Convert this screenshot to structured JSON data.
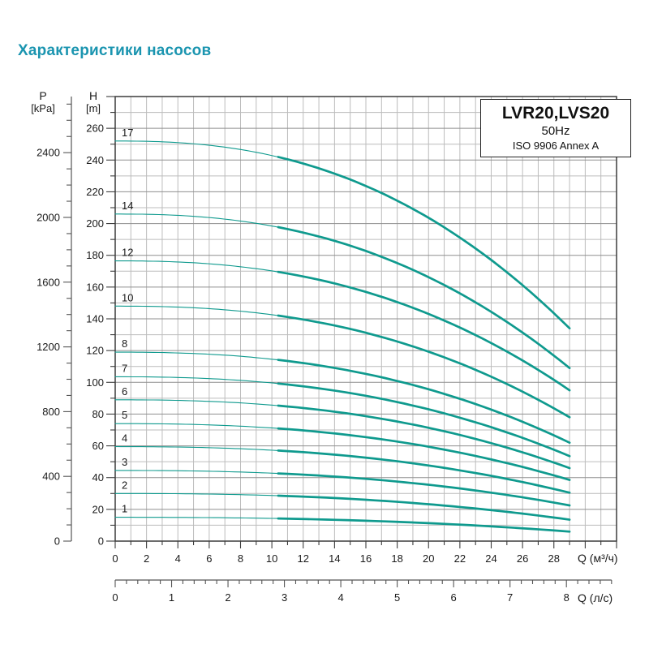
{
  "page": {
    "title": "Характеристики насосов",
    "title_color": "#1b95b0",
    "background": "#ffffff"
  },
  "chart_data": {
    "type": "line",
    "legend": {
      "model": "LVR20,LVS20",
      "frequency": "50Hz",
      "standard": "ISO 9906 Annex A"
    },
    "axes": {
      "pressure": {
        "label": "P",
        "unit": "[kPa]",
        "ticks": [
          0,
          400,
          800,
          1200,
          1600,
          2000,
          2400
        ],
        "minor_step": 100,
        "minor_max": 2700,
        "kpa_per_m": 9.81
      },
      "head": {
        "label": "H",
        "unit": "[m]",
        "ticks": [
          0,
          20,
          40,
          60,
          80,
          100,
          120,
          140,
          160,
          180,
          200,
          220,
          240,
          260
        ],
        "minor_step": 10,
        "range": [
          0,
          280
        ]
      },
      "flow_m3h": {
        "label": "Q (м³/ч)",
        "tick_labels": [
          0,
          2,
          4,
          6,
          8,
          10,
          12,
          14,
          16,
          18,
          20,
          22,
          24,
          26,
          28
        ],
        "minor_step": 1,
        "range": [
          0,
          32
        ]
      },
      "flow_ls": {
        "label": "Q (л/с)",
        "tick_labels": [
          0,
          1,
          2,
          3,
          4,
          5,
          6,
          7,
          8
        ],
        "minor_step": 0.2,
        "range": [
          0,
          8.8
        ],
        "m3h_per_ls": 3.6
      }
    },
    "curve": {
      "color": "#0f9a8e",
      "q_start": 0,
      "q_end": 29,
      "bold_from_q": 10.4,
      "shape_exponent": 2.4
    },
    "series": [
      {
        "label": "1",
        "h0": 15,
        "h_end": 6
      },
      {
        "label": "2",
        "h0": 30,
        "h_end": 13.5
      },
      {
        "label": "3",
        "h0": 44.5,
        "h_end": 22.5
      },
      {
        "label": "4",
        "h0": 59.5,
        "h_end": 30.5
      },
      {
        "label": "5",
        "h0": 74,
        "h_end": 38.5
      },
      {
        "label": "6",
        "h0": 89,
        "h_end": 46
      },
      {
        "label": "7",
        "h0": 103.5,
        "h_end": 53.5
      },
      {
        "label": "8",
        "h0": 119,
        "h_end": 62
      },
      {
        "label": "10",
        "h0": 148,
        "h_end": 78
      },
      {
        "label": "12",
        "h0": 176.5,
        "h_end": 95
      },
      {
        "label": "14",
        "h0": 206,
        "h_end": 109
      },
      {
        "label": "17",
        "h0": 252,
        "h_end": 134
      }
    ],
    "grid": {
      "minor_color": "#bcbcbc",
      "major_color": "#8f8f8f",
      "border_color": "#3c3c3c",
      "tick_color": "#3c3c3c",
      "ruler_color": "#555555",
      "text_color": "#1a1a1a"
    }
  }
}
